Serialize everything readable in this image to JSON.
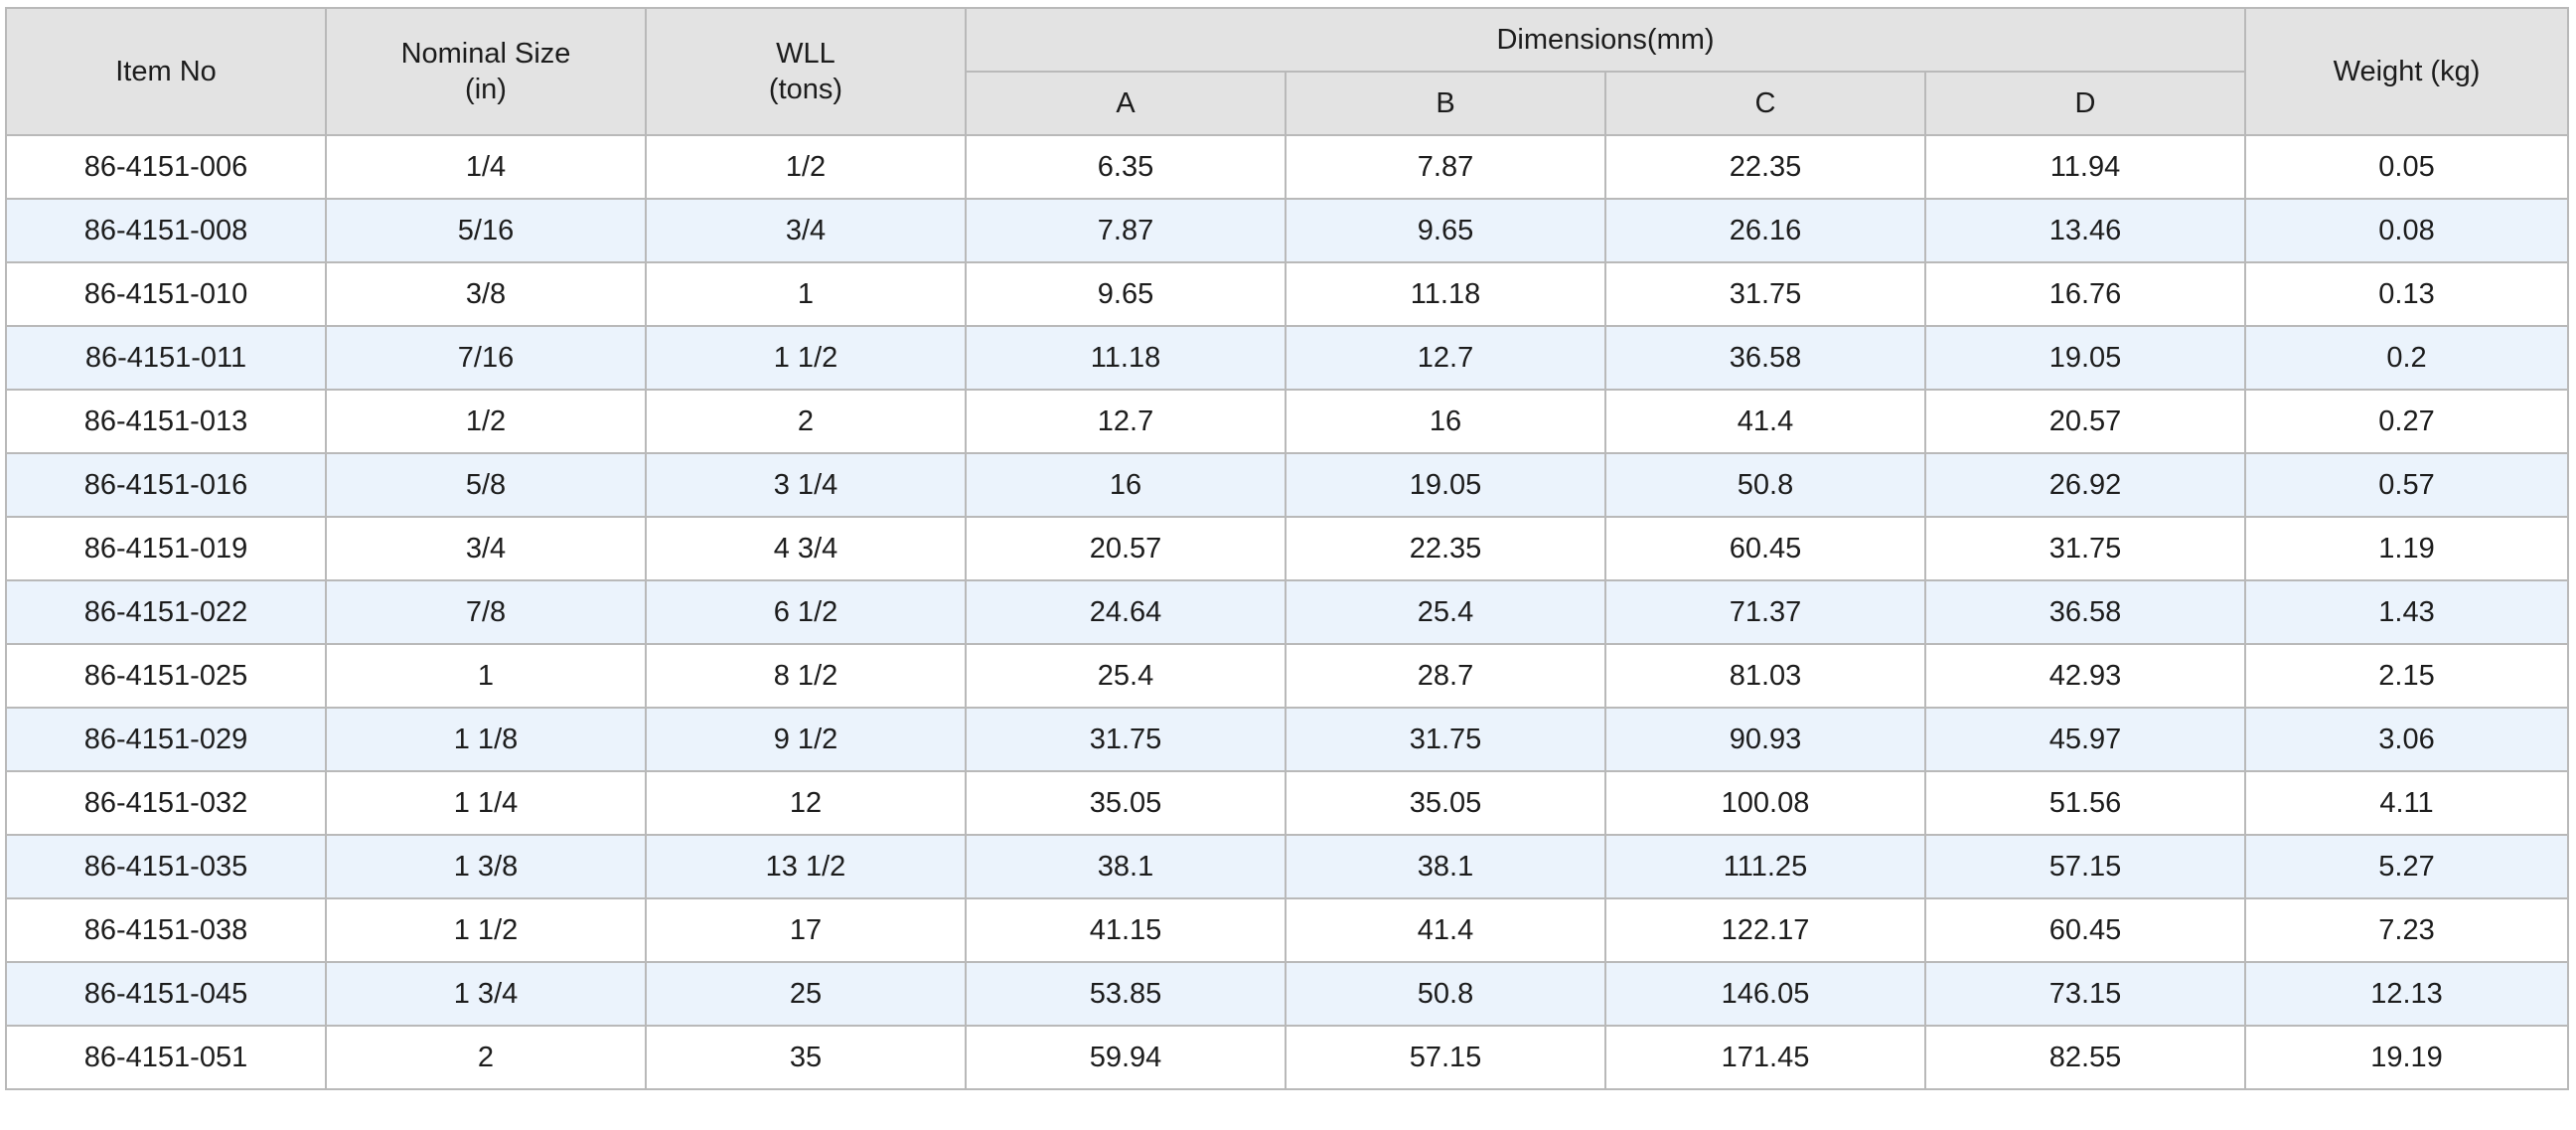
{
  "table": {
    "headers": {
      "item_no": "Item No",
      "nominal_size_line1": "Nominal Size",
      "nominal_size_line2": "(in)",
      "wll_line1": "WLL",
      "wll_line2": "(tons)",
      "dimensions": "Dimensions(mm)",
      "dim_a": "A",
      "dim_b": "B",
      "dim_c": "C",
      "dim_d": "D",
      "weight": "Weight (kg)"
    },
    "rows": [
      [
        "86-4151-006",
        "1/4",
        "1/2",
        "6.35",
        "7.87",
        "22.35",
        "11.94",
        "0.05"
      ],
      [
        "86-4151-008",
        "5/16",
        "3/4",
        "7.87",
        "9.65",
        "26.16",
        "13.46",
        "0.08"
      ],
      [
        "86-4151-010",
        "3/8",
        "1",
        "9.65",
        "11.18",
        "31.75",
        "16.76",
        "0.13"
      ],
      [
        "86-4151-011",
        "7/16",
        "1 1/2",
        "11.18",
        "12.7",
        "36.58",
        "19.05",
        "0.2"
      ],
      [
        "86-4151-013",
        "1/2",
        "2",
        "12.7",
        "16",
        "41.4",
        "20.57",
        "0.27"
      ],
      [
        "86-4151-016",
        "5/8",
        "3 1/4",
        "16",
        "19.05",
        "50.8",
        "26.92",
        "0.57"
      ],
      [
        "86-4151-019",
        "3/4",
        "4 3/4",
        "20.57",
        "22.35",
        "60.45",
        "31.75",
        "1.19"
      ],
      [
        "86-4151-022",
        "7/8",
        "6 1/2",
        "24.64",
        "25.4",
        "71.37",
        "36.58",
        "1.43"
      ],
      [
        "86-4151-025",
        "1",
        "8 1/2",
        "25.4",
        "28.7",
        "81.03",
        "42.93",
        "2.15"
      ],
      [
        "86-4151-029",
        "1 1/8",
        "9 1/2",
        "31.75",
        "31.75",
        "90.93",
        "45.97",
        "3.06"
      ],
      [
        "86-4151-032",
        "1 1/4",
        "12",
        "35.05",
        "35.05",
        "100.08",
        "51.56",
        "4.11"
      ],
      [
        "86-4151-035",
        "1 3/8",
        "13 1/2",
        "38.1",
        "38.1",
        "111.25",
        "57.15",
        "5.27"
      ],
      [
        "86-4151-038",
        "1 1/2",
        "17",
        "41.15",
        "41.4",
        "122.17",
        "60.45",
        "7.23"
      ],
      [
        "86-4151-045",
        "1 3/4",
        "25",
        "53.85",
        "50.8",
        "146.05",
        "73.15",
        "12.13"
      ],
      [
        "86-4151-051",
        "2",
        "35",
        "59.94",
        "57.15",
        "171.45",
        "82.55",
        "19.19"
      ]
    ]
  }
}
